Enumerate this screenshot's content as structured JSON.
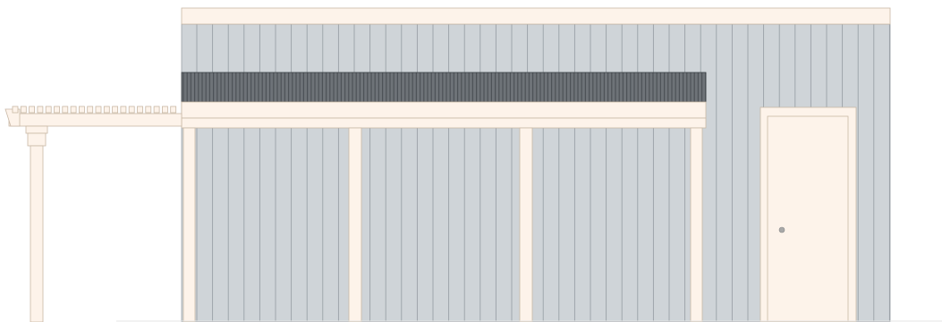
{
  "drawing": {
    "type": "building-elevation",
    "colors": {
      "background": "#ffffff",
      "siding": "#cfd4d8",
      "siding_line": "#9aa1a7",
      "trim": "#fdf3ea",
      "trim_outline": "#c9b8a6",
      "awning": "#6e7378",
      "awning_rib": "#4d5257",
      "door_knob": "#a8a8a8"
    },
    "elements": {
      "roof_fascia": "roof-fascia",
      "siding_wall": "board-and-batten-siding",
      "awning": "corrugated-metal-awning",
      "beam": "awning-beam",
      "pergola": "pergola-rafters",
      "posts": 4,
      "door": "entry-door"
    }
  }
}
